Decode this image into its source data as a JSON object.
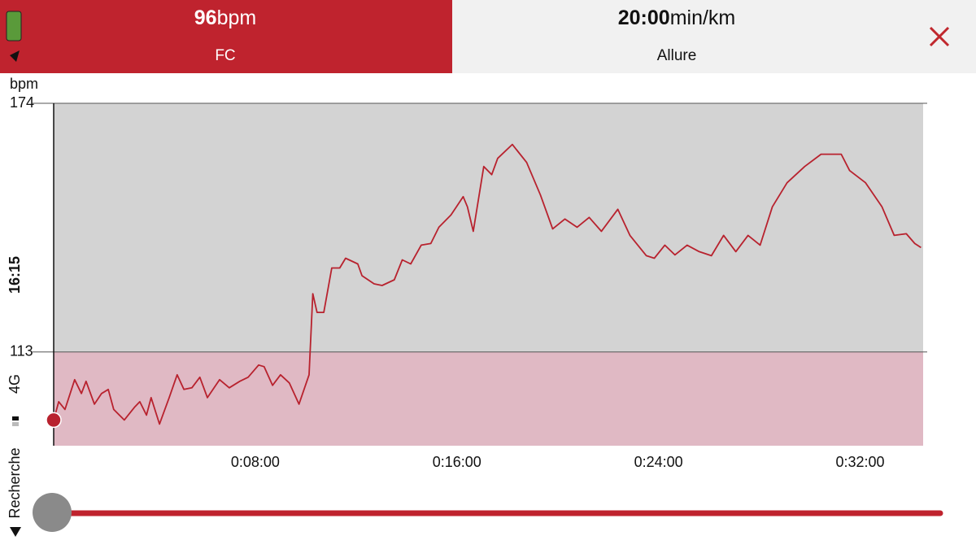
{
  "status": {
    "time": "16:15",
    "network": "4G",
    "carrier": "Recherche"
  },
  "header": {
    "hr_value": "96",
    "hr_unit": "bpm",
    "hr_label": "FC",
    "pace_value": "20:00",
    "pace_unit": "min/km",
    "pace_label": "Allure"
  },
  "chart_data": {
    "type": "line",
    "y_label": "bpm",
    "color": "#b8222e",
    "x": [
      0,
      12,
      27,
      50,
      66,
      77,
      97,
      114,
      130,
      143,
      168,
      192,
      205,
      221,
      232,
      252,
      275,
      294,
      310,
      329,
      348,
      366,
      395,
      418,
      443,
      463,
      488,
      501,
      521,
      540,
      561,
      584,
      608,
      617,
      627,
      643,
      662,
      681,
      695,
      724,
      734,
      763,
      782,
      811,
      830,
      850,
      875,
      898,
      917,
      946,
      975,
      985,
      999,
      1024,
      1043,
      1057,
      1092,
      1126,
      1159,
      1188,
      1217,
      1246,
      1275,
      1304,
      1343,
      1372,
      1411,
      1430,
      1455,
      1479,
      1508,
      1537,
      1566,
      1595,
      1624,
      1653,
      1682,
      1711,
      1746,
      1788,
      1827,
      1875,
      1895,
      1933,
      1972,
      2001,
      2030,
      2050,
      2065
    ],
    "values": [
      96.3,
      100.8,
      98.9,
      106.2,
      102.8,
      105.8,
      100.2,
      102.8,
      103.8,
      98.9,
      96.3,
      99.4,
      100.8,
      97.5,
      101.8,
      95.3,
      101.8,
      107.4,
      103.8,
      104.2,
      106.8,
      101.8,
      106.2,
      104.2,
      105.8,
      106.8,
      109.8,
      109.4,
      104.8,
      107.4,
      105.4,
      100.2,
      107.4,
      127.3,
      122.7,
      122.7,
      133.6,
      133.6,
      136.0,
      134.6,
      131.7,
      129.7,
      129.3,
      130.7,
      135.6,
      134.6,
      139.2,
      139.6,
      143.6,
      146.6,
      151.1,
      148.6,
      142.6,
      158.5,
      156.5,
      160.5,
      163.9,
      159.5,
      151.5,
      143.2,
      145.6,
      143.6,
      146.0,
      142.6,
      148.0,
      141.6,
      136.6,
      136.0,
      139.2,
      136.8,
      139.2,
      137.6,
      136.6,
      141.6,
      137.6,
      141.6,
      139.2,
      148.6,
      154.5,
      158.5,
      161.5,
      161.5,
      157.5,
      154.5,
      148.6,
      141.6,
      142.0,
      139.6,
      138.6
    ],
    "xlim": [
      0,
      2070
    ],
    "xticks": [
      {
        "value": 480,
        "label": "0:08:00"
      },
      {
        "value": 960,
        "label": "0:16:00"
      },
      {
        "value": 1440,
        "label": "0:24:00"
      },
      {
        "value": 1920,
        "label": "0:32:00"
      }
    ],
    "ylim": [
      90,
      174
    ],
    "yticks": [
      174,
      113
    ],
    "grid": true
  }
}
